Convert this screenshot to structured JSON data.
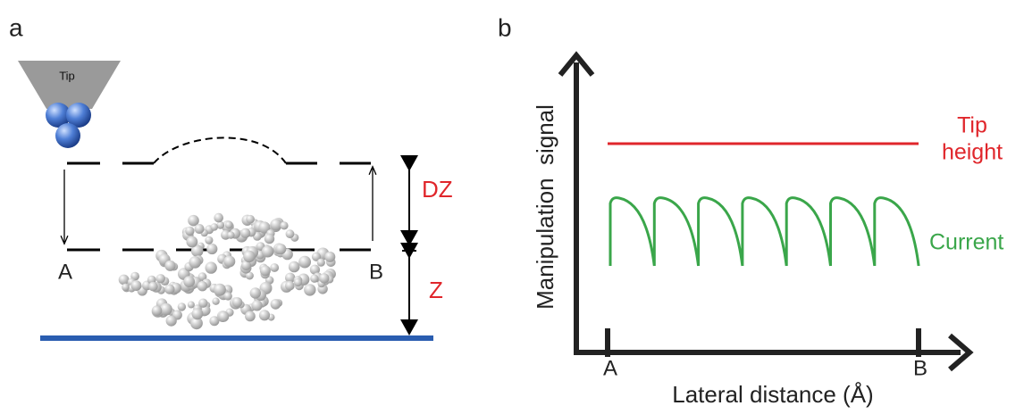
{
  "panel_a": {
    "label": "a",
    "tip": "Tip",
    "dz": "DZ",
    "z": "Z",
    "point_a": "A",
    "point_b": "B"
  },
  "panel_b": {
    "label": "b",
    "y_axis": "Manipulation  signal",
    "x_axis": "Lateral distance (Å)",
    "tip_height": [
      "Tip",
      "height"
    ],
    "current": "Current",
    "point_a": "A",
    "point_b": "B"
  }
}
